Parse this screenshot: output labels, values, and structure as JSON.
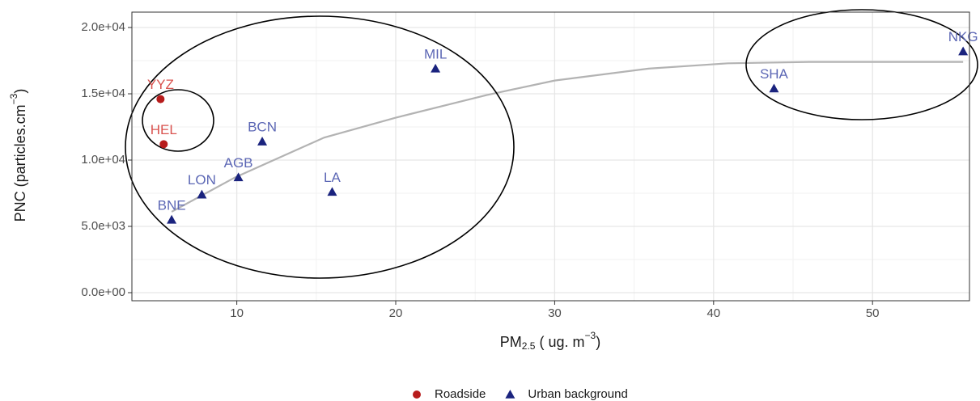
{
  "chart_data": {
    "type": "scatter",
    "x_label": {
      "main": "PM",
      "sub": "2.5",
      "rest": " ( ug. m",
      "sup": "−3",
      "end": ")"
    },
    "y_label": {
      "main": "PNC (particles.cm",
      "sup": "−3",
      "end": ")"
    },
    "xlim": [
      3.4,
      56.1
    ],
    "xticks": [
      10,
      20,
      30,
      40,
      50
    ],
    "ylim": [
      -610,
      21160
    ],
    "yticks": [
      {
        "value": 0,
        "label": "0.0e+00"
      },
      {
        "value": 5000,
        "label": "5.0e+03"
      },
      {
        "value": 10000,
        "label": "1.0e+04"
      },
      {
        "value": 15000,
        "label": "1.5e+04"
      },
      {
        "value": 20000,
        "label": "2.0e+04"
      }
    ],
    "grid": true,
    "minor_grid": true,
    "legend": "bottom",
    "series": [
      {
        "name": "Roadside",
        "color": "#b71c1c",
        "label_color": "#d9534f",
        "marker": "circle",
        "x": [
          5.2,
          5.4
        ],
        "values": [
          14600,
          11200
        ],
        "labels": [
          "YYZ",
          "HEL"
        ]
      },
      {
        "name": "Urban background",
        "color": "#1a237e",
        "label_color": "#5c67b5",
        "marker": "triangle",
        "x": [
          5.9,
          7.8,
          10.1,
          11.6,
          16.0,
          22.5,
          43.8,
          55.7
        ],
        "values": [
          5500,
          7400,
          8700,
          11400,
          7600,
          16900,
          15400,
          18200
        ],
        "labels": [
          "BNE",
          "LON",
          "AGB",
          "BCN",
          "LA",
          "MIL",
          "SHA",
          "NKG"
        ]
      }
    ],
    "trend_line": {
      "color": "#b3b3b3",
      "x": [
        5.9,
        9.9,
        15.5,
        20,
        25.7,
        30,
        35.9,
        40.9,
        46,
        55.7
      ],
      "values": [
        6100,
        8700,
        11700,
        13200,
        14900,
        16000,
        16900,
        17300,
        17400,
        17400
      ]
    }
  }
}
